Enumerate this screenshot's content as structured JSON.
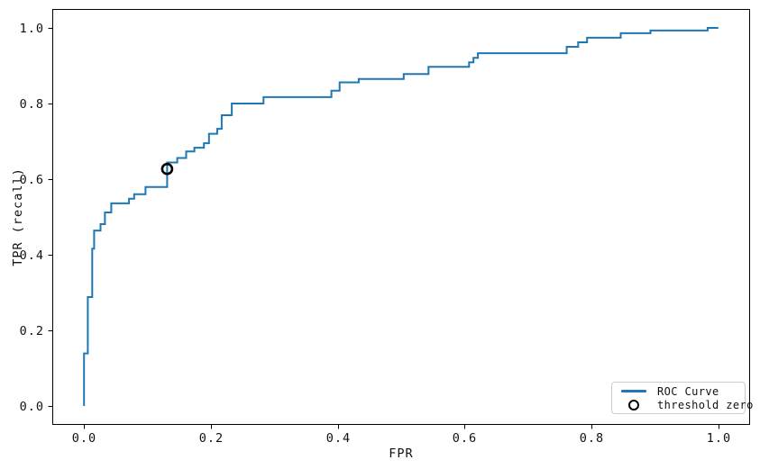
{
  "figure": {
    "background": "#ffffff",
    "axis_color": "#000000",
    "text_color": "#111111"
  },
  "chart_data": {
    "type": "line",
    "subtype": "roc-step-curve",
    "title": "",
    "xlabel": "FPR",
    "ylabel": "TPR (recall)",
    "xlim": [
      -0.05,
      1.05
    ],
    "ylim": [
      -0.05,
      1.05
    ],
    "grid": false,
    "legend_position": "lower right",
    "x_ticks": [
      {
        "value": 0.0,
        "label": "0.0"
      },
      {
        "value": 0.2,
        "label": "0.2"
      },
      {
        "value": 0.4,
        "label": "0.4"
      },
      {
        "value": 0.6,
        "label": "0.6"
      },
      {
        "value": 0.8,
        "label": "0.8"
      },
      {
        "value": 1.0,
        "label": "1.0"
      }
    ],
    "y_ticks": [
      {
        "value": 0.0,
        "label": "0.0"
      },
      {
        "value": 0.2,
        "label": "0.2"
      },
      {
        "value": 0.4,
        "label": "0.4"
      },
      {
        "value": 0.6,
        "label": "0.6"
      },
      {
        "value": 0.8,
        "label": "0.8"
      },
      {
        "value": 1.0,
        "label": "1.0"
      }
    ],
    "series": [
      {
        "name": "ROC Curve",
        "color": "#1f77b4",
        "line_width": 2,
        "points": [
          [
            0.0,
            0.0
          ],
          [
            0.0,
            0.139
          ],
          [
            0.006,
            0.139
          ],
          [
            0.006,
            0.288
          ],
          [
            0.013,
            0.288
          ],
          [
            0.013,
            0.416
          ],
          [
            0.016,
            0.416
          ],
          [
            0.016,
            0.464
          ],
          [
            0.026,
            0.464
          ],
          [
            0.026,
            0.481
          ],
          [
            0.033,
            0.481
          ],
          [
            0.033,
            0.512
          ],
          [
            0.043,
            0.512
          ],
          [
            0.043,
            0.536
          ],
          [
            0.071,
            0.536
          ],
          [
            0.071,
            0.548
          ],
          [
            0.079,
            0.548
          ],
          [
            0.079,
            0.56
          ],
          [
            0.097,
            0.56
          ],
          [
            0.097,
            0.579
          ],
          [
            0.131,
            0.579
          ],
          [
            0.131,
            0.644
          ],
          [
            0.147,
            0.644
          ],
          [
            0.147,
            0.656
          ],
          [
            0.161,
            0.656
          ],
          [
            0.161,
            0.673
          ],
          [
            0.174,
            0.673
          ],
          [
            0.174,
            0.683
          ],
          [
            0.189,
            0.683
          ],
          [
            0.189,
            0.695
          ],
          [
            0.197,
            0.695
          ],
          [
            0.197,
            0.72
          ],
          [
            0.21,
            0.72
          ],
          [
            0.21,
            0.733
          ],
          [
            0.217,
            0.733
          ],
          [
            0.217,
            0.769
          ],
          [
            0.233,
            0.769
          ],
          [
            0.233,
            0.8
          ],
          [
            0.283,
            0.8
          ],
          [
            0.283,
            0.817
          ],
          [
            0.39,
            0.817
          ],
          [
            0.39,
            0.834
          ],
          [
            0.403,
            0.834
          ],
          [
            0.403,
            0.856
          ],
          [
            0.433,
            0.856
          ],
          [
            0.433,
            0.865
          ],
          [
            0.504,
            0.865
          ],
          [
            0.504,
            0.878
          ],
          [
            0.543,
            0.878
          ],
          [
            0.543,
            0.897
          ],
          [
            0.607,
            0.897
          ],
          [
            0.607,
            0.909
          ],
          [
            0.614,
            0.909
          ],
          [
            0.614,
            0.921
          ],
          [
            0.621,
            0.921
          ],
          [
            0.621,
            0.933
          ],
          [
            0.761,
            0.933
          ],
          [
            0.761,
            0.95
          ],
          [
            0.779,
            0.95
          ],
          [
            0.779,
            0.962
          ],
          [
            0.793,
            0.962
          ],
          [
            0.793,
            0.974
          ],
          [
            0.846,
            0.974
          ],
          [
            0.846,
            0.986
          ],
          [
            0.893,
            0.986
          ],
          [
            0.893,
            0.993
          ],
          [
            0.983,
            0.993
          ],
          [
            0.983,
            1.0
          ],
          [
            1.0,
            1.0
          ]
        ]
      }
    ],
    "threshold_marker": {
      "label": "threshold zero",
      "shape": "open-circle",
      "color": "#000000",
      "fpr": 0.131,
      "tpr": 0.627
    }
  },
  "legend": {
    "row1_label": "ROC Curve",
    "row2_label": "threshold zero"
  }
}
